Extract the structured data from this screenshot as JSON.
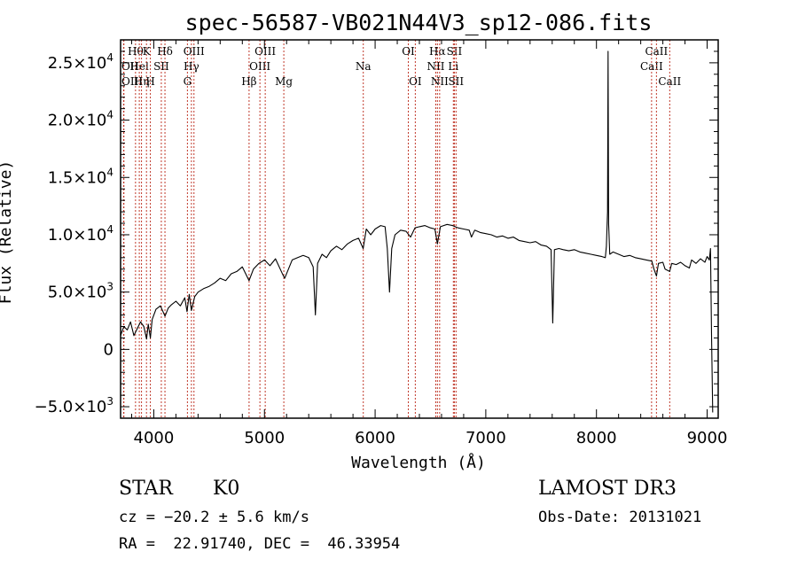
{
  "chart_data": {
    "type": "line",
    "title": "spec-56587-VB021N44V3_sp12-086.fits",
    "xlabel": "Wavelength (Å)",
    "ylabel": "Flux (Relative)",
    "xlim": [
      3700,
      9100
    ],
    "ylim": [
      -6000,
      27000
    ],
    "x_ticks": [
      {
        "value": 4000,
        "label": "4000"
      },
      {
        "value": 5000,
        "label": "5000"
      },
      {
        "value": 6000,
        "label": "6000"
      },
      {
        "value": 7000,
        "label": "7000"
      },
      {
        "value": 8000,
        "label": "8000"
      },
      {
        "value": 9000,
        "label": "9000"
      }
    ],
    "y_ticks": [
      {
        "value": -5000,
        "mant": "−5.0×10",
        "exp": "3"
      },
      {
        "value": 0,
        "mant": "0",
        "exp": ""
      },
      {
        "value": 5000,
        "mant": "5.0×10",
        "exp": "3"
      },
      {
        "value": 10000,
        "mant": "1.0×10",
        "exp": "4"
      },
      {
        "value": 15000,
        "mant": "1.5×10",
        "exp": "4"
      },
      {
        "value": 20000,
        "mant": "2.0×10",
        "exp": "4"
      },
      {
        "value": 25000,
        "mant": "2.5×10",
        "exp": "4"
      }
    ],
    "series": [
      {
        "name": "spectrum",
        "color": "#000000",
        "points": [
          [
            3700,
            1200
          ],
          [
            3730,
            2000
          ],
          [
            3760,
            1700
          ],
          [
            3790,
            2400
          ],
          [
            3820,
            1200
          ],
          [
            3850,
            1800
          ],
          [
            3880,
            2400
          ],
          [
            3910,
            2000
          ],
          [
            3935,
            900
          ],
          [
            3950,
            2200
          ],
          [
            3969,
            1000
          ],
          [
            3985,
            2600
          ],
          [
            4020,
            3500
          ],
          [
            4060,
            3800
          ],
          [
            4101,
            2900
          ],
          [
            4130,
            3600
          ],
          [
            4160,
            3900
          ],
          [
            4200,
            4200
          ],
          [
            4240,
            3800
          ],
          [
            4280,
            4500
          ],
          [
            4300,
            3300
          ],
          [
            4320,
            4800
          ],
          [
            4340,
            3400
          ],
          [
            4370,
            4600
          ],
          [
            4400,
            5000
          ],
          [
            4450,
            5300
          ],
          [
            4500,
            5500
          ],
          [
            4550,
            5800
          ],
          [
            4600,
            6200
          ],
          [
            4650,
            6000
          ],
          [
            4700,
            6600
          ],
          [
            4750,
            6800
          ],
          [
            4800,
            7200
          ],
          [
            4861,
            6000
          ],
          [
            4900,
            7000
          ],
          [
            4950,
            7500
          ],
          [
            5000,
            7800
          ],
          [
            5050,
            7300
          ],
          [
            5100,
            7900
          ],
          [
            5167,
            6500
          ],
          [
            5183,
            6200
          ],
          [
            5250,
            7800
          ],
          [
            5300,
            8000
          ],
          [
            5350,
            8200
          ],
          [
            5400,
            8000
          ],
          [
            5440,
            7200
          ],
          [
            5460,
            3000
          ],
          [
            5480,
            7500
          ],
          [
            5520,
            8300
          ],
          [
            5560,
            8000
          ],
          [
            5600,
            8600
          ],
          [
            5650,
            9000
          ],
          [
            5700,
            8700
          ],
          [
            5750,
            9200
          ],
          [
            5800,
            9500
          ],
          [
            5850,
            9700
          ],
          [
            5892,
            8800
          ],
          [
            5920,
            10500
          ],
          [
            5960,
            10000
          ],
          [
            6000,
            10500
          ],
          [
            6050,
            10800
          ],
          [
            6090,
            10700
          ],
          [
            6110,
            8800
          ],
          [
            6130,
            5000
          ],
          [
            6150,
            8800
          ],
          [
            6180,
            10000
          ],
          [
            6230,
            10400
          ],
          [
            6280,
            10300
          ],
          [
            6320,
            9800
          ],
          [
            6360,
            10600
          ],
          [
            6400,
            10700
          ],
          [
            6450,
            10800
          ],
          [
            6500,
            10600
          ],
          [
            6540,
            10500
          ],
          [
            6563,
            9200
          ],
          [
            6590,
            10700
          ],
          [
            6650,
            10900
          ],
          [
            6700,
            10800
          ],
          [
            6750,
            10600
          ],
          [
            6800,
            10500
          ],
          [
            6850,
            10400
          ],
          [
            6870,
            9800
          ],
          [
            6900,
            10400
          ],
          [
            6950,
            10200
          ],
          [
            7000,
            10100
          ],
          [
            7050,
            10000
          ],
          [
            7100,
            9800
          ],
          [
            7150,
            9900
          ],
          [
            7200,
            9700
          ],
          [
            7250,
            9800
          ],
          [
            7300,
            9500
          ],
          [
            7350,
            9400
          ],
          [
            7400,
            9300
          ],
          [
            7450,
            9400
          ],
          [
            7500,
            9100
          ],
          [
            7550,
            9000
          ],
          [
            7590,
            8700
          ],
          [
            7605,
            2300
          ],
          [
            7620,
            8700
          ],
          [
            7660,
            8800
          ],
          [
            7700,
            8700
          ],
          [
            7750,
            8600
          ],
          [
            7800,
            8700
          ],
          [
            7850,
            8500
          ],
          [
            7900,
            8400
          ],
          [
            7950,
            8300
          ],
          [
            8000,
            8200
          ],
          [
            8050,
            8100
          ],
          [
            8080,
            8000
          ],
          [
            8090,
            9000
          ],
          [
            8100,
            12000
          ],
          [
            8105,
            26000
          ],
          [
            8110,
            11000
          ],
          [
            8120,
            8300
          ],
          [
            8150,
            8500
          ],
          [
            8200,
            8300
          ],
          [
            8250,
            8100
          ],
          [
            8300,
            8200
          ],
          [
            8350,
            8000
          ],
          [
            8400,
            7900
          ],
          [
            8450,
            7800
          ],
          [
            8500,
            7700
          ],
          [
            8520,
            7000
          ],
          [
            8542,
            6400
          ],
          [
            8560,
            7500
          ],
          [
            8600,
            7600
          ],
          [
            8620,
            7000
          ],
          [
            8662,
            6800
          ],
          [
            8680,
            7500
          ],
          [
            8720,
            7400
          ],
          [
            8760,
            7600
          ],
          [
            8800,
            7300
          ],
          [
            8840,
            7100
          ],
          [
            8860,
            7800
          ],
          [
            8900,
            7500
          ],
          [
            8940,
            7900
          ],
          [
            8980,
            7600
          ],
          [
            9000,
            8100
          ],
          [
            9020,
            7800
          ],
          [
            9030,
            8800
          ],
          [
            9040,
            1200
          ],
          [
            9050,
            -5500
          ]
        ]
      }
    ],
    "emission_lines": [
      {
        "w": 3727,
        "label": "OII",
        "row": 2,
        "side": "left"
      },
      {
        "w": 3730,
        "label": "OIII",
        "row": 3,
        "side": "left"
      },
      {
        "w": 3835,
        "label": "Hθ",
        "row": 1,
        "side": "center"
      },
      {
        "w": 3869,
        "label": "Hel",
        "row": 2,
        "side": "center"
      },
      {
        "w": 3889,
        "label": "Hη",
        "row": 3,
        "side": "center"
      },
      {
        "w": 3934,
        "label": "K",
        "row": 1,
        "side": "center"
      },
      {
        "w": 3969,
        "label": "H",
        "row": 3,
        "side": "center"
      },
      {
        "w": 4068,
        "label": "SII",
        "row": 2,
        "side": "center"
      },
      {
        "w": 4101,
        "label": "Hδ",
        "row": 1,
        "side": "center"
      },
      {
        "w": 4304,
        "label": "G",
        "row": 3,
        "side": "center"
      },
      {
        "w": 4340,
        "label": "Hγ",
        "row": 2,
        "side": "center"
      },
      {
        "w": 4363,
        "label": "OIII",
        "row": 1,
        "side": "center"
      },
      {
        "w": 4861,
        "label": "Hβ",
        "row": 3,
        "side": "center"
      },
      {
        "w": 4959,
        "label": "OIII",
        "row": 2,
        "side": "center"
      },
      {
        "w": 5007,
        "label": "OIII",
        "row": 1,
        "side": "center"
      },
      {
        "w": 5175,
        "label": "Mg",
        "row": 3,
        "side": "center"
      },
      {
        "w": 5893,
        "label": "Na",
        "row": 2,
        "side": "center"
      },
      {
        "w": 6300,
        "label": "OI",
        "row": 1,
        "side": "center"
      },
      {
        "w": 6363,
        "label": "OI",
        "row": 3,
        "side": "center"
      },
      {
        "w": 6548,
        "label": "NII",
        "row": 2,
        "side": "center"
      },
      {
        "w": 6563,
        "label": "Hα",
        "row": 1,
        "side": "center"
      },
      {
        "w": 6583,
        "label": "NII",
        "row": 3,
        "side": "center"
      },
      {
        "w": 6707,
        "label": "Li",
        "row": 2,
        "side": "center"
      },
      {
        "w": 6716,
        "label": "SII",
        "row": 1,
        "side": "center"
      },
      {
        "w": 6731,
        "label": "SII",
        "row": 3,
        "side": "center"
      },
      {
        "w": 8498,
        "label": "CaII",
        "row": 2,
        "side": "center"
      },
      {
        "w": 8542,
        "label": "CaII",
        "row": 1,
        "side": "center"
      },
      {
        "w": 8662,
        "label": "CaII",
        "row": 3,
        "side": "center"
      }
    ]
  },
  "footer": {
    "class_label": "STAR",
    "subclass": "K0",
    "survey": "LAMOST DR3",
    "redshift": "cz = −20.2 ± 5.6 km/s",
    "obs_date": "Obs-Date: 20131021",
    "coords": "RA =  22.91740, DEC =  46.33954"
  }
}
